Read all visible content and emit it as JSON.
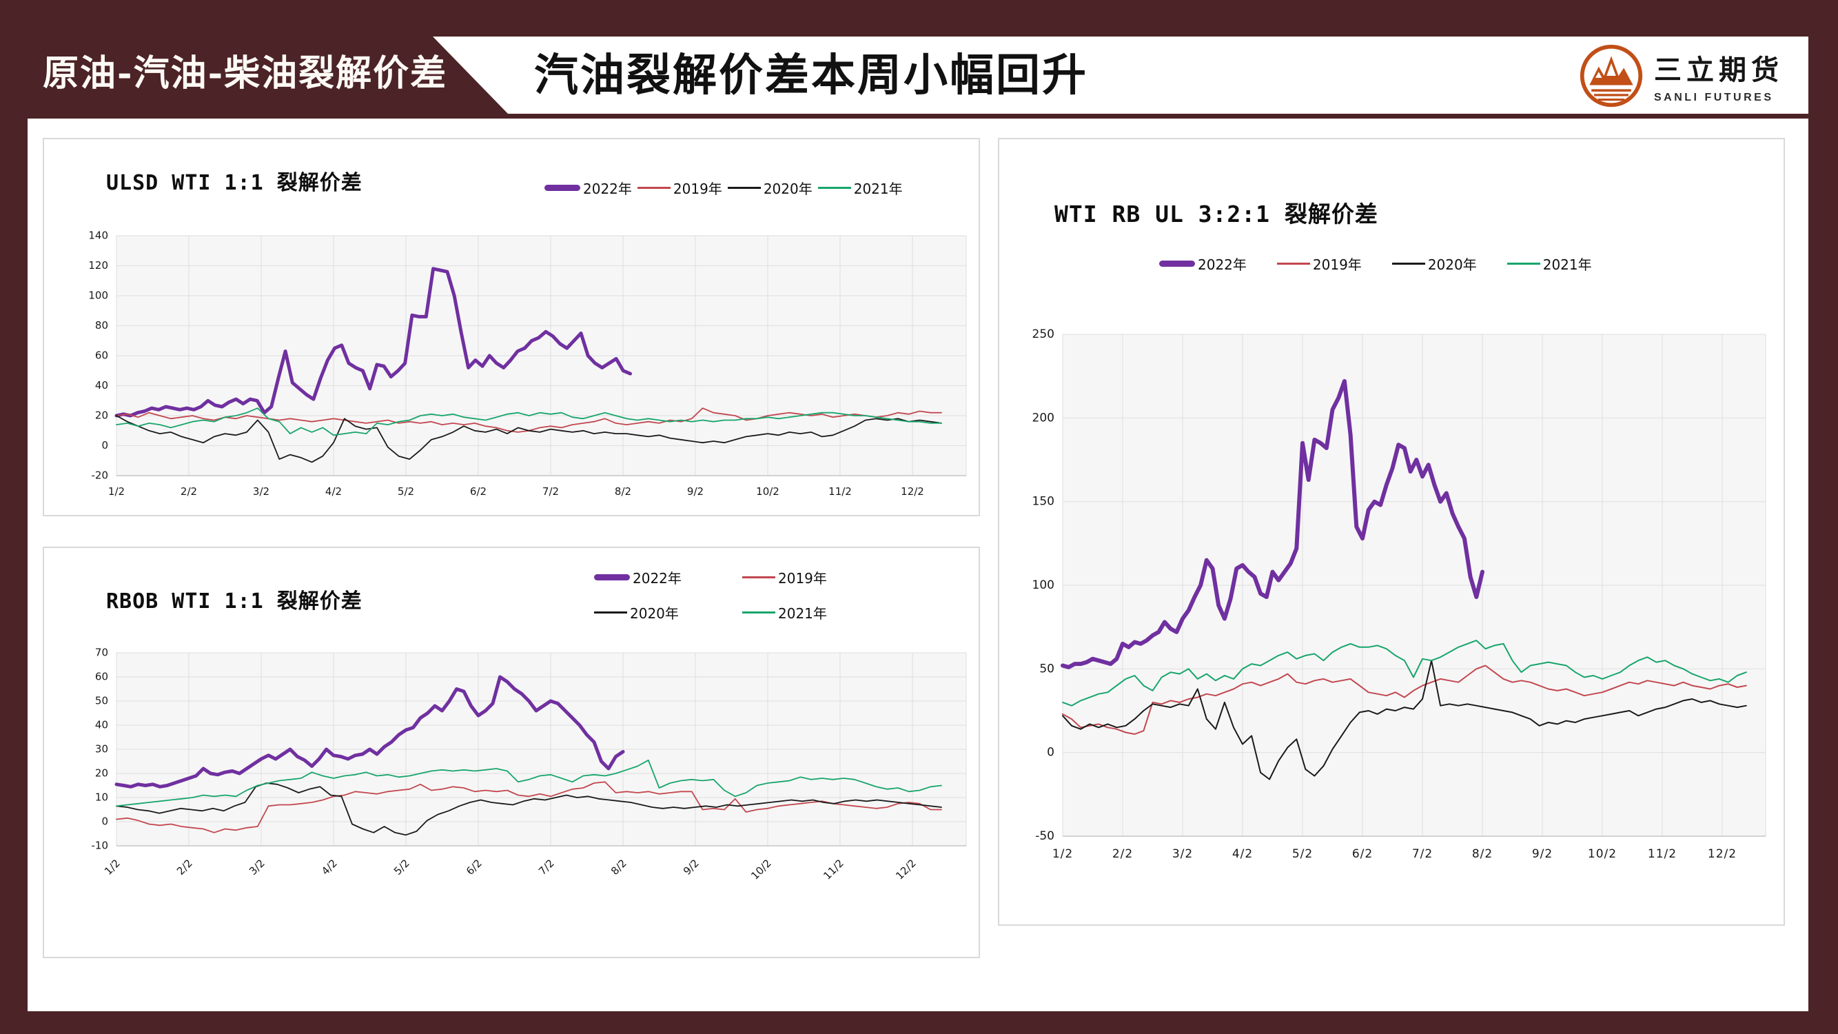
{
  "header": {
    "section_label": "原油-汽油-柴油裂解价差",
    "title": "汽油裂解价差本周小幅回升",
    "logo": {
      "name_cn": "三立期货",
      "name_en": "SANLI FUTURES",
      "color": "#C14F17"
    }
  },
  "colors": {
    "frame_maroon": "#4C2326",
    "purple": "#7030A0",
    "red": "#C2474F",
    "black": "#1A1A1A",
    "green": "#17A56B",
    "grid": "#e2e2e2",
    "plot_bg": "#f6f6f6"
  },
  "chart_data": [
    {
      "type": "line",
      "title": "ULSD WTI 1:1 裂解价差",
      "xlabel": "",
      "ylabel": "",
      "ylim": [
        -20,
        140
      ],
      "yticks": [
        140,
        120,
        100,
        80,
        60,
        40,
        20,
        0,
        -20
      ],
      "xticks": [
        "1/2",
        "2/2",
        "3/2",
        "4/2",
        "5/2",
        "6/2",
        "7/2",
        "8/2",
        "9/2",
        "10/2",
        "11/2",
        "12/2"
      ],
      "legend_position": "top-right-row",
      "series": [
        {
          "name": "2022年",
          "color": "#7030A0",
          "width": 5,
          "x_start": 0,
          "x_end": 7.1,
          "values": [
            20,
            21,
            20,
            22,
            23,
            25,
            24,
            26,
            25,
            24,
            25,
            24,
            26,
            30,
            27,
            26,
            29,
            31,
            28,
            31,
            30,
            22,
            26,
            45,
            63,
            42,
            38,
            34,
            31,
            45,
            57,
            65,
            67,
            55,
            52,
            50,
            38,
            54,
            53,
            46,
            50,
            55,
            87,
            86,
            86,
            118,
            117,
            116,
            100,
            75,
            52,
            57,
            53,
            60,
            55,
            52,
            57,
            63,
            65,
            70,
            72,
            76,
            73,
            68,
            65,
            70,
            75,
            60,
            55,
            52,
            55,
            58,
            50,
            48
          ]
        },
        {
          "name": "2019年",
          "color": "#C2474F",
          "width": 1.8,
          "x_start": 0,
          "x_end": 11.4,
          "values": [
            20,
            21,
            19,
            22,
            20,
            18,
            19,
            20,
            18,
            17,
            19,
            18,
            20,
            19,
            18,
            17,
            18,
            17,
            16,
            17,
            18,
            17,
            16,
            15,
            16,
            17,
            15,
            16,
            15,
            16,
            14,
            15,
            14,
            15,
            13,
            12,
            10,
            9,
            10,
            12,
            13,
            12,
            14,
            15,
            16,
            18,
            15,
            14,
            15,
            16,
            15,
            17,
            16,
            18,
            25,
            22,
            21,
            20,
            17,
            18,
            20,
            21,
            22,
            21,
            20,
            21,
            19,
            20,
            21,
            20,
            19,
            20,
            22,
            21,
            23,
            22,
            22
          ]
        },
        {
          "name": "2020年",
          "color": "#1A1A1A",
          "width": 1.8,
          "x_start": 0,
          "x_end": 11.4,
          "values": [
            20,
            16,
            13,
            10,
            8,
            9,
            6,
            4,
            2,
            6,
            8,
            7,
            9,
            17,
            9,
            -9,
            -6,
            -8,
            -11,
            -7,
            2,
            18,
            13,
            11,
            12,
            -1,
            -7,
            -9,
            -3,
            4,
            6,
            9,
            13,
            10,
            9,
            11,
            8,
            12,
            10,
            9,
            11,
            10,
            9,
            10,
            8,
            9,
            8,
            8,
            7,
            6,
            7,
            5,
            4,
            3,
            2,
            3,
            2,
            4,
            6,
            7,
            8,
            7,
            9,
            8,
            9,
            6,
            7,
            10,
            13,
            17,
            18,
            17,
            18,
            16,
            17,
            16,
            15
          ]
        },
        {
          "name": "2021年",
          "color": "#17A56B",
          "width": 1.8,
          "x_start": 0,
          "x_end": 11.4,
          "values": [
            14,
            15,
            13,
            15,
            14,
            12,
            14,
            16,
            17,
            16,
            19,
            20,
            22,
            25,
            18,
            16,
            8,
            12,
            9,
            12,
            7,
            8,
            9,
            8,
            15,
            14,
            16,
            17,
            20,
            21,
            20,
            21,
            19,
            18,
            17,
            19,
            21,
            22,
            20,
            22,
            21,
            22,
            19,
            18,
            20,
            22,
            20,
            18,
            17,
            18,
            17,
            16,
            17,
            16,
            17,
            16,
            17,
            17,
            18,
            18,
            19,
            18,
            19,
            20,
            21,
            22,
            22,
            21,
            20,
            20,
            19,
            18,
            17,
            16,
            16,
            15,
            15
          ]
        }
      ]
    },
    {
      "type": "line",
      "title": "RBOB WTI 1:1 裂解价差",
      "xlabel": "",
      "ylabel": "",
      "ylim": [
        -10,
        70
      ],
      "yticks": [
        70,
        60,
        50,
        40,
        30,
        20,
        10,
        0,
        -10
      ],
      "xticks": [
        "1/2",
        "2/2",
        "3/2",
        "4/2",
        "5/2",
        "6/2",
        "7/2",
        "8/2",
        "9/2",
        "10/2",
        "11/2",
        "12/2"
      ],
      "legend_position": "top-right-grid",
      "series": [
        {
          "name": "2022年",
          "color": "#7030A0",
          "width": 5,
          "x_start": 0,
          "x_end": 7.0,
          "values": [
            15.5,
            15,
            14.5,
            15.5,
            15,
            15.5,
            14.5,
            15,
            16,
            17,
            18,
            19,
            22,
            20,
            19.5,
            20.5,
            21,
            20,
            22,
            24,
            26,
            27.5,
            26,
            28,
            30,
            27,
            25.5,
            23,
            26,
            30,
            27.5,
            27,
            26,
            27.5,
            28,
            30,
            28,
            31,
            33,
            36,
            38,
            39,
            43,
            45,
            48,
            46,
            50,
            55,
            54,
            48,
            44,
            46,
            49,
            60,
            58,
            55,
            53,
            50,
            46,
            48,
            50,
            49,
            46,
            43,
            40,
            36,
            33,
            25,
            22,
            27,
            29
          ]
        },
        {
          "name": "2019年",
          "color": "#C2474F",
          "width": 1.8,
          "x_start": 0,
          "x_end": 11.4,
          "values": [
            1,
            1.5,
            0.5,
            -1,
            -1.5,
            -1,
            -2,
            -2.5,
            -3,
            -4.5,
            -3,
            -3.5,
            -2.5,
            -2,
            6.5,
            7,
            7,
            7.5,
            8,
            9,
            10.5,
            11,
            12.5,
            12,
            11.5,
            12.5,
            13,
            13.5,
            15.5,
            13,
            13.5,
            14.5,
            14,
            12.5,
            13,
            12.5,
            13,
            11,
            10.5,
            11.5,
            10.5,
            12,
            13.5,
            14,
            16,
            16.5,
            12,
            12.5,
            12,
            12.5,
            11.5,
            12,
            12.5,
            12.5,
            5,
            5.5,
            5,
            9.5,
            4,
            5,
            5.5,
            6.5,
            7,
            7.5,
            8,
            8.5,
            7.5,
            7,
            6.5,
            6,
            5.5,
            6,
            7.5,
            8,
            7.5,
            5,
            5
          ]
        },
        {
          "name": "2020年",
          "color": "#1A1A1A",
          "width": 1.8,
          "x_start": 0,
          "x_end": 11.4,
          "values": [
            6.5,
            6,
            5,
            4.5,
            3.5,
            4.5,
            5.5,
            5,
            4.5,
            5.5,
            4.5,
            6.5,
            8,
            14.5,
            16,
            15.5,
            14,
            12,
            13.5,
            14.5,
            11,
            10.5,
            -1,
            -3,
            -4.5,
            -2,
            -4.5,
            -5.5,
            -4,
            0.5,
            3,
            4.5,
            6.5,
            8,
            9,
            8,
            7.5,
            7,
            8.5,
            9.5,
            9,
            10,
            11,
            10,
            10.5,
            9.5,
            9,
            8.5,
            8,
            7,
            6,
            5.5,
            6,
            5.5,
            6,
            6.5,
            6,
            7,
            6.5,
            7,
            7.5,
            8,
            8.5,
            9,
            8.5,
            9,
            8,
            7.5,
            8.5,
            9,
            8.5,
            9,
            8.5,
            8,
            7.5,
            7,
            6.5,
            6
          ]
        },
        {
          "name": "2021年",
          "color": "#17A56B",
          "width": 1.8,
          "x_start": 0,
          "x_end": 11.4,
          "values": [
            6.5,
            7,
            7.5,
            8,
            8.5,
            9,
            9.5,
            10,
            11,
            10.5,
            11,
            10.5,
            13,
            15,
            16,
            17,
            17.5,
            18,
            20.5,
            19,
            18,
            19,
            19.5,
            20.5,
            19,
            19.5,
            18.5,
            19,
            20,
            21,
            21.5,
            21,
            21.5,
            21,
            21.5,
            22,
            21,
            16.5,
            17.5,
            19,
            19.5,
            18,
            16.5,
            19,
            19.5,
            19,
            20,
            21.5,
            23,
            25.5,
            14,
            16,
            17,
            17.5,
            17,
            17.5,
            13,
            10.5,
            12,
            15,
            16,
            16.5,
            17,
            18.5,
            17.5,
            18,
            17.5,
            18,
            17.5,
            16,
            14.5,
            13.5,
            14,
            12.5,
            13,
            14.5,
            15
          ]
        }
      ]
    },
    {
      "type": "line",
      "title": "WTI RB UL 3:2:1 裂解价差",
      "xlabel": "",
      "ylabel": "",
      "ylim": [
        -50,
        250
      ],
      "yticks": [
        250,
        200,
        150,
        100,
        50,
        0,
        -50
      ],
      "xticks": [
        "1/2",
        "2/2",
        "3/2",
        "4/2",
        "5/2",
        "6/2",
        "7/2",
        "8/2",
        "9/2",
        "10/2",
        "11/2",
        "12/2"
      ],
      "legend_position": "top-right-row",
      "series": [
        {
          "name": "2022年",
          "color": "#7030A0",
          "width": 6,
          "x_start": 0,
          "x_end": 7.0,
          "values": [
            52,
            51,
            53,
            53,
            54,
            56,
            55,
            54,
            53,
            56,
            65,
            63,
            66,
            65,
            67,
            70,
            72,
            78,
            74,
            72,
            80,
            85,
            93,
            100,
            115,
            110,
            88,
            80,
            92,
            110,
            112,
            108,
            105,
            95,
            93,
            108,
            103,
            108,
            113,
            122,
            185,
            163,
            187,
            185,
            182,
            205,
            212,
            222,
            190,
            135,
            128,
            145,
            150,
            148,
            160,
            170,
            184,
            182,
            168,
            175,
            165,
            172,
            160,
            150,
            155,
            143,
            135,
            128,
            105,
            93,
            108
          ]
        },
        {
          "name": "2019年",
          "color": "#C2474F",
          "width": 2,
          "x_start": 0,
          "x_end": 11.4,
          "values": [
            23,
            20,
            15,
            16,
            17,
            15,
            14,
            12,
            11,
            13,
            30,
            29,
            31,
            30,
            32,
            33,
            35,
            34,
            36,
            38,
            41,
            42,
            40,
            42,
            44,
            47,
            42,
            41,
            43,
            44,
            42,
            43,
            44,
            40,
            36,
            35,
            34,
            36,
            33,
            37,
            40,
            42,
            44,
            43,
            42,
            46,
            50,
            52,
            48,
            44,
            42,
            43,
            42,
            40,
            38,
            37,
            38,
            36,
            34,
            35,
            36,
            38,
            40,
            42,
            41,
            43,
            42,
            41,
            40,
            42,
            40,
            39,
            38,
            40,
            41,
            39,
            40
          ]
        },
        {
          "name": "2020年",
          "color": "#1A1A1A",
          "width": 2,
          "x_start": 0,
          "x_end": 11.4,
          "values": [
            22,
            16,
            14,
            17,
            15,
            17,
            15,
            16,
            20,
            25,
            29,
            28,
            27,
            29,
            28,
            38,
            20,
            14,
            30,
            15,
            5,
            10,
            -12,
            -16,
            -5,
            3,
            8,
            -10,
            -14,
            -8,
            2,
            10,
            18,
            24,
            25,
            23,
            26,
            25,
            27,
            26,
            32,
            55,
            28,
            29,
            28,
            29,
            28,
            27,
            26,
            25,
            24,
            22,
            20,
            16,
            18,
            17,
            19,
            18,
            20,
            21,
            22,
            23,
            24,
            25,
            22,
            24,
            26,
            27,
            29,
            31,
            32,
            30,
            31,
            29,
            28,
            27,
            28
          ]
        },
        {
          "name": "2021年",
          "color": "#17A56B",
          "width": 2,
          "x_start": 0,
          "x_end": 11.4,
          "values": [
            30,
            28,
            31,
            33,
            35,
            36,
            40,
            44,
            46,
            40,
            37,
            45,
            48,
            47,
            50,
            44,
            47,
            43,
            46,
            44,
            50,
            53,
            52,
            55,
            58,
            60,
            56,
            58,
            59,
            55,
            60,
            63,
            65,
            63,
            63,
            64,
            62,
            58,
            55,
            45,
            56,
            55,
            57,
            60,
            63,
            65,
            67,
            62,
            64,
            65,
            55,
            48,
            52,
            53,
            54,
            53,
            52,
            48,
            45,
            46,
            44,
            46,
            48,
            52,
            55,
            57,
            54,
            55,
            52,
            50,
            47,
            45,
            43,
            44,
            42,
            46,
            48
          ]
        }
      ]
    }
  ]
}
